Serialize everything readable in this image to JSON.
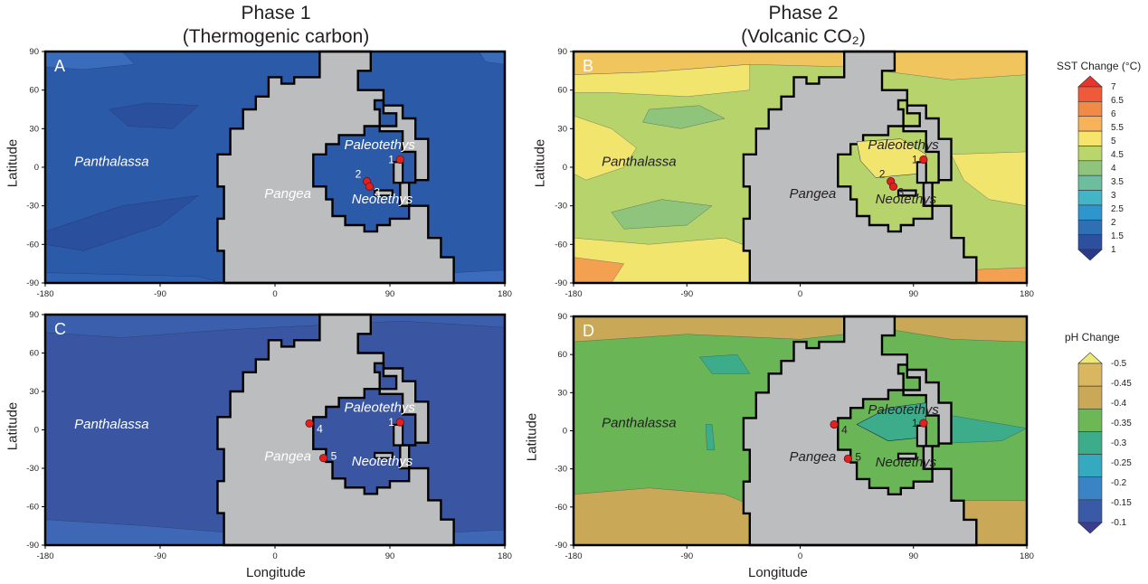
{
  "headers": {
    "phase1_line1": "Phase 1",
    "phase1_line2": "(Thermogenic carbon)",
    "phase2_line1": "Phase 2",
    "phase2_line2": "(Volcanic CO₂)"
  },
  "axes": {
    "ylabel": "Latitude",
    "xlabel": "Longitude",
    "x_ticks": [
      "-180",
      "-90",
      "0",
      "90",
      "180"
    ],
    "y_ticks": [
      "90",
      "60",
      "30",
      "0",
      "-30",
      "-60",
      "-90"
    ]
  },
  "legends": {
    "sst": {
      "title": "SST Change (°C)",
      "ticks": [
        "7",
        "6.5",
        "6",
        "5.5",
        "5",
        "4.5",
        "4",
        "3.5",
        "3",
        "2.5",
        "2",
        "1.5",
        "1"
      ],
      "colors": [
        "#e8342e",
        "#ee5a3a",
        "#f28a47",
        "#f6b359",
        "#f6e46c",
        "#b9d56c",
        "#8fc47c",
        "#6dbe9e",
        "#44b5c8",
        "#2e95cd",
        "#2f6fb3",
        "#2d4f9e",
        "#283a8c"
      ]
    },
    "ph": {
      "title": "pH Change",
      "ticks": [
        "-0.5",
        "-0.45",
        "-0.4",
        "-0.35",
        "-0.3",
        "-0.25",
        "-0.2",
        "-0.15",
        "-0.1"
      ],
      "colors": [
        "#eee878",
        "#d8b760",
        "#c9a858",
        "#6db757",
        "#3cac8a",
        "#34a9c0",
        "#3a83c4",
        "#3a5aa8",
        "#3b3d90"
      ]
    }
  },
  "chart_data": [
    {
      "type": "heatmap",
      "panel": "A",
      "variable": "SST Change (°C)",
      "xlabel": "",
      "ylabel": "Latitude",
      "xlim": [
        -180,
        180
      ],
      "ylim": [
        -90,
        90
      ],
      "ocean_labels": [
        "Panthalassa",
        "Paleotethys",
        "Neotethys"
      ],
      "land_label": "Pangea",
      "sites": [
        {
          "id": "1",
          "lon": 98,
          "lat": 6
        },
        {
          "id": "2",
          "lon": 72,
          "lat": -11
        },
        {
          "id": "3",
          "lon": 74,
          "lat": -15
        }
      ],
      "base_value": 1.7
    },
    {
      "type": "heatmap",
      "panel": "B",
      "variable": "SST Change (°C)",
      "xlabel": "",
      "ylabel": "Latitude",
      "xlim": [
        -180,
        180
      ],
      "ylim": [
        -90,
        90
      ],
      "ocean_labels": [
        "Panthalassa",
        "Paleotethys",
        "Neotethys"
      ],
      "land_label": "Pangea",
      "sites": [
        {
          "id": "1",
          "lon": 98,
          "lat": 6
        },
        {
          "id": "2",
          "lon": 72,
          "lat": -11
        },
        {
          "id": "3",
          "lon": 74,
          "lat": -15
        }
      ],
      "base_value": 4.5
    },
    {
      "type": "heatmap",
      "panel": "C",
      "variable": "pH Change",
      "xlabel": "Longitude",
      "ylabel": "Latitude",
      "xlim": [
        -180,
        180
      ],
      "ylim": [
        -90,
        90
      ],
      "ocean_labels": [
        "Panthalassa",
        "Paleotethys",
        "Neotethys"
      ],
      "land_label": "Pangea",
      "sites": [
        {
          "id": "1",
          "lon": 98,
          "lat": 6
        },
        {
          "id": "4",
          "lon": 27,
          "lat": 5
        },
        {
          "id": "5",
          "lon": 38,
          "lat": -22
        }
      ],
      "base_value": -0.12
    },
    {
      "type": "heatmap",
      "panel": "D",
      "variable": "pH Change",
      "xlabel": "Longitude",
      "ylabel": "Latitude",
      "xlim": [
        -180,
        180
      ],
      "ylim": [
        -90,
        90
      ],
      "ocean_labels": [
        "Panthalassa",
        "Paleotethys",
        "Neotethys"
      ],
      "land_label": "Pangea",
      "sites": [
        {
          "id": "1",
          "lon": 98,
          "lat": 6
        },
        {
          "id": "4",
          "lon": 27,
          "lat": 5
        },
        {
          "id": "5",
          "lon": 38,
          "lat": -22
        }
      ],
      "base_value": -0.35
    }
  ]
}
